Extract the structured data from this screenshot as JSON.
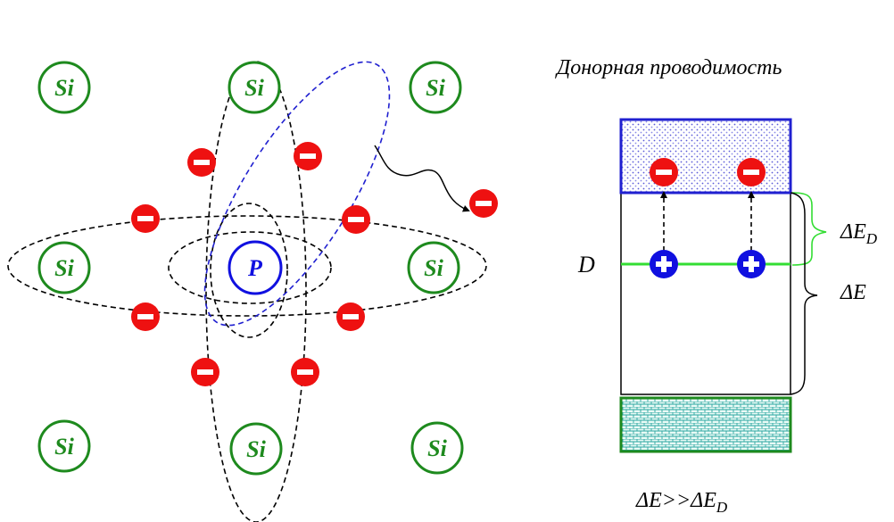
{
  "colors": {
    "silicon": "#1e8a1e",
    "phosphorus": "#1010e0",
    "electron": "#ee1111",
    "hole": "#1010e0",
    "orbit": "#000000",
    "free_orbit": "#2020d0",
    "donor_level": "#33dd33",
    "conduction_band": "#2020d0",
    "valence_band": "#1e8a1e"
  },
  "lattice": {
    "silicon_label": "Si",
    "phosphorus_label": "P",
    "electron_sign": "−",
    "hole_sign": "+"
  },
  "band_diagram": {
    "title": "Донорная проводимость",
    "donor_level_label": "D",
    "gap_symbol": "ΔE",
    "donor_gap_main": "ΔE",
    "donor_gap_sub": "D",
    "relation_main": "ΔE>>ΔE",
    "relation_sub": "D"
  }
}
